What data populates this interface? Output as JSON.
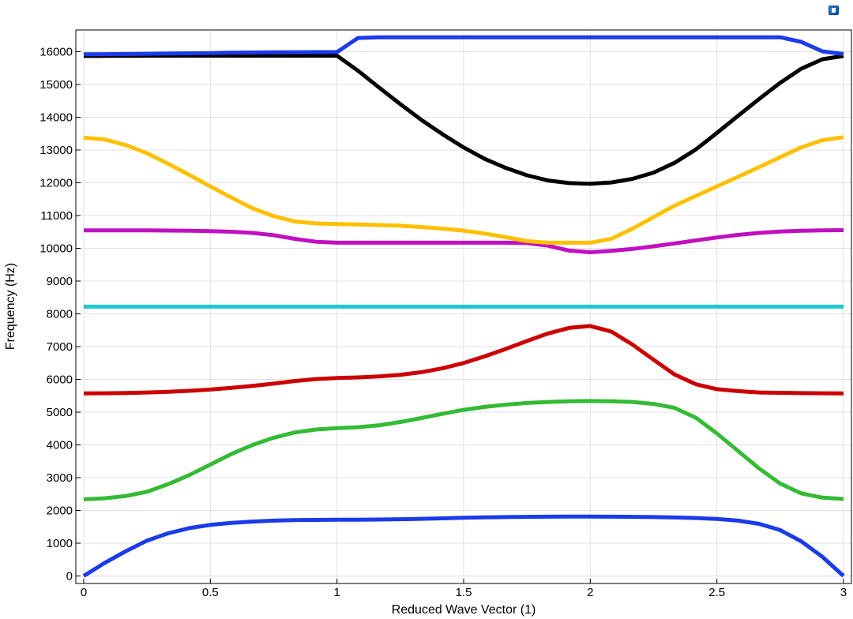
{
  "toolbar": {
    "export_icon": "image-export-icon"
  },
  "chart_data": {
    "type": "line",
    "title": "",
    "xlabel": "Reduced Wave Vector (1)",
    "ylabel": "Frequency (Hz)",
    "xlim": [
      0,
      3
    ],
    "ylim": [
      0,
      16500
    ],
    "grid": true,
    "legend": "none",
    "xticks": [
      0,
      0.5,
      1,
      1.5,
      2,
      2.5,
      3
    ],
    "xtick_labels": [
      "0",
      "0.5",
      "1",
      "1.5",
      "2",
      "2.5",
      "3"
    ],
    "yticks": [
      0,
      1000,
      2000,
      3000,
      4000,
      5000,
      6000,
      7000,
      8000,
      9000,
      10000,
      11000,
      12000,
      13000,
      14000,
      15000,
      16000
    ],
    "ytick_labels": [
      "0",
      "1000",
      "2000",
      "3000",
      "4000",
      "5000",
      "6000",
      "7000",
      "8000",
      "9000",
      "10000",
      "11000",
      "12000",
      "13000",
      "14000",
      "15000",
      "16000"
    ],
    "series": [
      {
        "color": "#1a3be8",
        "x": [
          0,
          0.083,
          0.167,
          0.25,
          0.333,
          0.417,
          0.5,
          0.583,
          0.667,
          0.75,
          0.833,
          0.917,
          1,
          1.083,
          1.167,
          1.25,
          1.333,
          1.417,
          1.5,
          1.583,
          1.667,
          1.75,
          1.833,
          1.917,
          2,
          2.083,
          2.167,
          2.25,
          2.333,
          2.417,
          2.5,
          2.583,
          2.667,
          2.75,
          2.833,
          2.917,
          3
        ],
        "y": [
          0,
          400,
          760,
          1080,
          1300,
          1460,
          1560,
          1620,
          1660,
          1690,
          1705,
          1712,
          1715,
          1718,
          1724,
          1732,
          1745,
          1760,
          1775,
          1788,
          1798,
          1806,
          1810,
          1812,
          1812,
          1810,
          1805,
          1797,
          1785,
          1768,
          1740,
          1690,
          1590,
          1400,
          1060,
          580,
          0
        ]
      },
      {
        "color": "#33bb33",
        "x": [
          0,
          0.083,
          0.167,
          0.25,
          0.333,
          0.417,
          0.5,
          0.583,
          0.667,
          0.75,
          0.833,
          0.917,
          1,
          1.083,
          1.167,
          1.25,
          1.333,
          1.417,
          1.5,
          1.583,
          1.667,
          1.75,
          1.833,
          1.917,
          2,
          2.083,
          2.167,
          2.25,
          2.333,
          2.417,
          2.5,
          2.583,
          2.667,
          2.75,
          2.833,
          2.917,
          3
        ],
        "y": [
          2340,
          2370,
          2440,
          2570,
          2800,
          3080,
          3400,
          3720,
          4000,
          4220,
          4380,
          4470,
          4510,
          4540,
          4600,
          4700,
          4820,
          4950,
          5070,
          5160,
          5230,
          5280,
          5310,
          5330,
          5340,
          5330,
          5310,
          5250,
          5130,
          4830,
          4350,
          3820,
          3280,
          2820,
          2520,
          2390,
          2350
        ]
      },
      {
        "color": "#cc0000",
        "x": [
          0,
          0.083,
          0.167,
          0.25,
          0.333,
          0.417,
          0.5,
          0.583,
          0.667,
          0.75,
          0.833,
          0.917,
          1,
          1.083,
          1.167,
          1.25,
          1.333,
          1.417,
          1.5,
          1.583,
          1.667,
          1.75,
          1.833,
          1.917,
          2,
          2.083,
          2.167,
          2.25,
          2.333,
          2.417,
          2.5,
          2.583,
          2.667,
          2.75,
          2.833,
          2.917,
          3
        ],
        "y": [
          5570,
          5575,
          5585,
          5600,
          5620,
          5650,
          5690,
          5740,
          5800,
          5870,
          5950,
          6010,
          6040,
          6060,
          6090,
          6140,
          6220,
          6340,
          6500,
          6700,
          6930,
          7170,
          7400,
          7570,
          7630,
          7460,
          7060,
          6600,
          6150,
          5850,
          5700,
          5640,
          5600,
          5590,
          5580,
          5575,
          5570
        ]
      },
      {
        "color": "#1ec8d2",
        "x": [
          0,
          0.5,
          1,
          1.5,
          2,
          2.5,
          3
        ],
        "y": [
          8220,
          8220,
          8220,
          8220,
          8220,
          8220,
          8220
        ]
      },
      {
        "color": "#c010c0",
        "x": [
          0,
          0.083,
          0.167,
          0.25,
          0.333,
          0.417,
          0.5,
          0.583,
          0.667,
          0.75,
          0.833,
          0.917,
          1,
          1.083,
          1.167,
          1.25,
          1.333,
          1.417,
          1.5,
          1.583,
          1.667,
          1.75,
          1.833,
          1.917,
          2,
          2.083,
          2.167,
          2.25,
          2.333,
          2.417,
          2.5,
          2.583,
          2.667,
          2.75,
          2.833,
          2.917,
          3
        ],
        "y": [
          10550,
          10550,
          10548,
          10546,
          10542,
          10535,
          10525,
          10505,
          10470,
          10400,
          10290,
          10200,
          10170,
          10170,
          10170,
          10170,
          10170,
          10170,
          10170,
          10170,
          10170,
          10160,
          10080,
          9930,
          9880,
          9920,
          9980,
          10060,
          10150,
          10240,
          10330,
          10410,
          10470,
          10510,
          10535,
          10550,
          10555
        ]
      },
      {
        "color": "#ffc000",
        "x": [
          0,
          0.083,
          0.167,
          0.25,
          0.333,
          0.417,
          0.5,
          0.583,
          0.667,
          0.75,
          0.833,
          0.917,
          1,
          1.083,
          1.167,
          1.25,
          1.333,
          1.417,
          1.5,
          1.583,
          1.667,
          1.75,
          1.833,
          1.917,
          2,
          2.083,
          2.167,
          2.25,
          2.333,
          2.417,
          2.5,
          2.583,
          2.667,
          2.75,
          2.833,
          2.917,
          3
        ],
        "y": [
          13380,
          13320,
          13150,
          12900,
          12580,
          12240,
          11890,
          11550,
          11220,
          10980,
          10820,
          10760,
          10740,
          10730,
          10710,
          10690,
          10650,
          10600,
          10540,
          10450,
          10340,
          10220,
          10170,
          10170,
          10170,
          10290,
          10600,
          10950,
          11300,
          11600,
          11890,
          12180,
          12480,
          12780,
          13080,
          13300,
          13390
        ]
      },
      {
        "color": "#000000",
        "x": [
          0,
          0.083,
          0.167,
          0.25,
          0.333,
          0.417,
          0.5,
          0.583,
          0.667,
          0.75,
          0.833,
          0.917,
          1,
          1.083,
          1.167,
          1.25,
          1.333,
          1.417,
          1.5,
          1.583,
          1.667,
          1.75,
          1.833,
          1.917,
          2,
          2.083,
          2.167,
          2.25,
          2.333,
          2.417,
          2.5,
          2.583,
          2.667,
          2.75,
          2.833,
          2.917,
          3
        ],
        "y": [
          15870,
          15872,
          15874,
          15876,
          15878,
          15879,
          15880,
          15880,
          15880,
          15880,
          15880,
          15880,
          15880,
          15420,
          14900,
          14400,
          13920,
          13480,
          13080,
          12730,
          12450,
          12230,
          12070,
          11990,
          11970,
          12010,
          12120,
          12310,
          12610,
          13020,
          13520,
          14040,
          14560,
          15050,
          15480,
          15770,
          15870
        ]
      },
      {
        "color": "#1a3be8",
        "x": [
          0,
          0.083,
          0.167,
          0.25,
          0.333,
          0.417,
          0.5,
          0.583,
          0.667,
          0.75,
          0.833,
          0.917,
          1,
          1.083,
          1.167,
          1.25,
          1.333,
          1.417,
          1.5,
          1.583,
          1.667,
          1.75,
          1.833,
          1.917,
          2,
          2.083,
          2.167,
          2.25,
          2.333,
          2.417,
          2.5,
          2.583,
          2.667,
          2.75,
          2.833,
          2.917,
          3
        ],
        "y": [
          15920,
          15925,
          15930,
          15938,
          15945,
          15952,
          15960,
          15968,
          15975,
          15980,
          15985,
          15988,
          15990,
          16420,
          16440,
          16440,
          16440,
          16440,
          16440,
          16440,
          16440,
          16440,
          16440,
          16440,
          16440,
          16440,
          16440,
          16440,
          16440,
          16440,
          16440,
          16440,
          16440,
          16440,
          16300,
          16010,
          15930
        ]
      }
    ]
  }
}
